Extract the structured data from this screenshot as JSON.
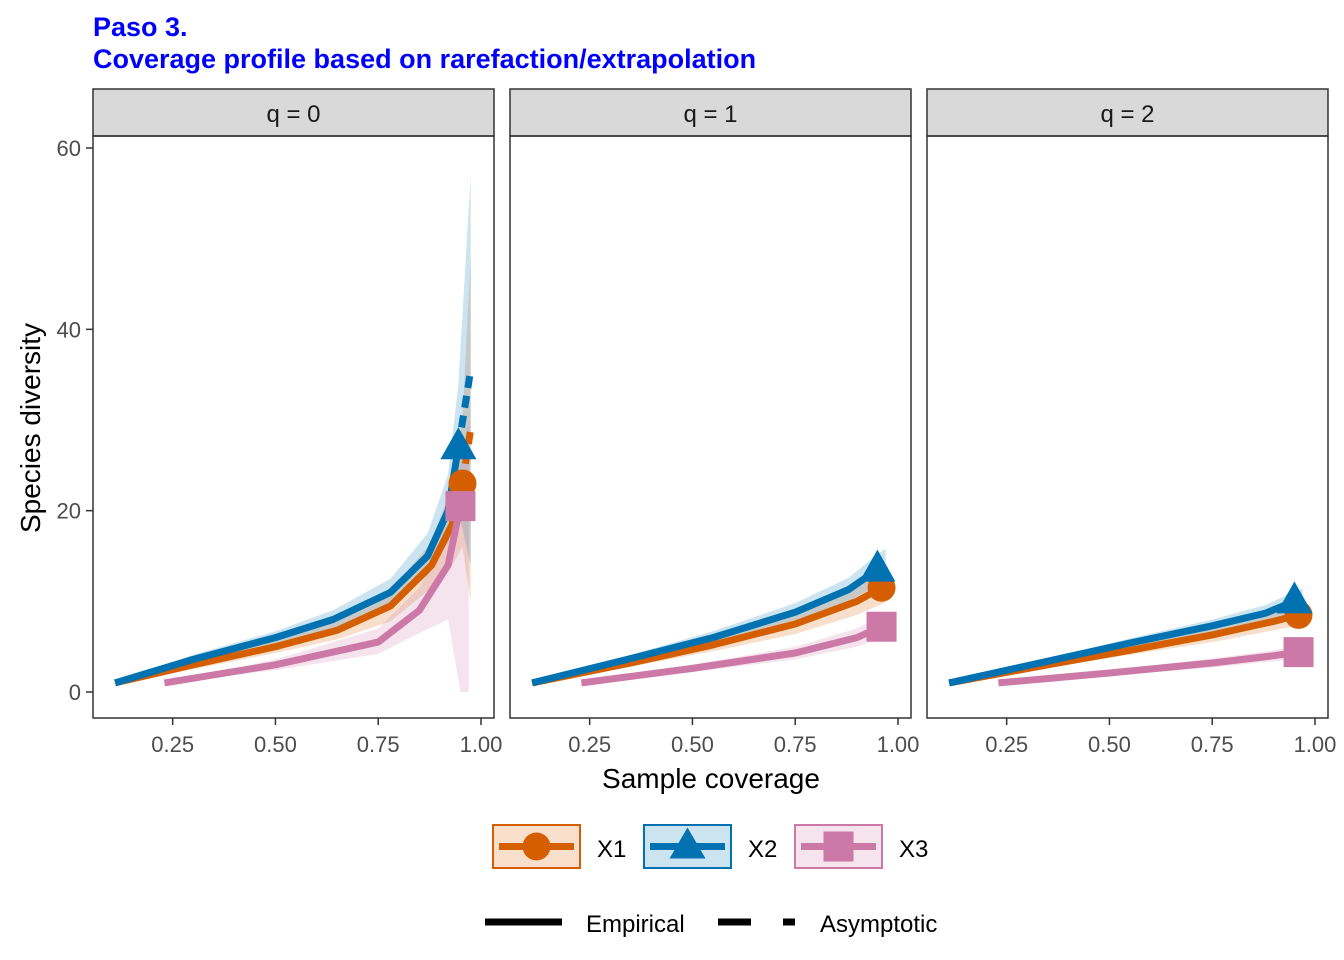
{
  "title_line1": "Paso 3.",
  "title_line2": "Coverage profile based on rarefaction/extrapolation",
  "chart_data": {
    "type": "line",
    "xlabel": "Sample coverage",
    "ylabel": "Species diversity",
    "xlim": [
      0.1,
      1.0
    ],
    "ylim": [
      -3,
      60
    ],
    "x_ticks": [
      0.25,
      0.5,
      0.75,
      1.0
    ],
    "x_tick_labels": [
      "0.25",
      "0.50",
      "0.75",
      "1.00"
    ],
    "y_ticks": [
      0,
      20,
      40,
      60
    ],
    "y_tick_labels": [
      "0",
      "20",
      "40",
      "60"
    ],
    "grid": false,
    "legend_position": "bottom",
    "colors": {
      "X1": "#D55E00",
      "X2": "#0072B2",
      "X3": "#CC79A7"
    },
    "markers": {
      "X1": "circle",
      "X2": "triangle",
      "X3": "square"
    },
    "legend": {
      "series": [
        {
          "name": "X1",
          "color": "#D55E00",
          "marker": "circle"
        },
        {
          "name": "X2",
          "color": "#0072B2",
          "marker": "triangle"
        },
        {
          "name": "X3",
          "color": "#CC79A7",
          "marker": "square"
        }
      ],
      "linetypes": [
        {
          "name": "Empirical",
          "style": "solid"
        },
        {
          "name": "Asymptotic",
          "style": "dashed"
        }
      ]
    },
    "panels": [
      {
        "label": "q = 0",
        "series": [
          {
            "name": "X1",
            "rarefaction": {
              "x": [
                0.11,
                0.3,
                0.5,
                0.65,
                0.78,
                0.88,
                0.93,
                0.955
              ],
              "y": [
                1,
                3,
                5,
                6.8,
                9.5,
                14,
                18.5,
                23
              ]
            },
            "extrapolation": {
              "x": [
                0.955,
                0.975
              ],
              "y": [
                23,
                29
              ]
            },
            "lower": [
              1,
              2.5,
              4.3,
              5.8,
              7.8,
              11.5,
              14,
              16
            ],
            "upper": [
              1,
              3.5,
              5.7,
              7.8,
              11.2,
              16.5,
              23,
              30
            ],
            "ext_lower": [
              16,
              10
            ],
            "ext_upper": [
              30,
              48
            ],
            "observed": {
              "x": 0.955,
              "y": 23
            }
          },
          {
            "name": "X2",
            "rarefaction": {
              "x": [
                0.11,
                0.3,
                0.5,
                0.64,
                0.78,
                0.87,
                0.92,
                0.945
              ],
              "y": [
                1,
                3.6,
                6,
                8,
                11,
                15,
                20,
                27
              ]
            },
            "extrapolation": {
              "x": [
                0.945,
                0.975
              ],
              "y": [
                27,
                35.5
              ]
            },
            "lower": [
              1,
              3.1,
              5.3,
              7,
              9.6,
              12.8,
              16.5,
              20
            ],
            "upper": [
              1,
              4.1,
              6.7,
              9,
              12.5,
              17.5,
              24,
              34
            ],
            "ext_lower": [
              20,
              14
            ],
            "ext_upper": [
              34,
              57
            ],
            "observed": {
              "x": 0.945,
              "y": 27
            }
          },
          {
            "name": "X3",
            "rarefaction": {
              "x": [
                0.23,
                0.5,
                0.75,
                0.85,
                0.92,
                0.95
              ],
              "y": [
                1,
                3,
                5.5,
                9,
                14,
                20.5
              ]
            },
            "extrapolation": {
              "x": [
                0.95,
                0.97
              ],
              "y": [
                20.5,
                24
              ]
            },
            "lower": [
              1,
              2.4,
              4.2,
              6.5,
              8,
              0
            ],
            "upper": [
              1,
              3.6,
              7,
              11.5,
              17,
              25
            ],
            "ext_lower": [
              0,
              0
            ],
            "ext_upper": [
              25,
              30
            ],
            "observed": {
              "x": 0.95,
              "y": 20.5
            }
          }
        ]
      },
      {
        "label": "q = 1",
        "series": [
          {
            "name": "X1",
            "rarefaction": {
              "x": [
                0.11,
                0.35,
                0.55,
                0.75,
                0.9,
                0.96
              ],
              "y": [
                1,
                3.2,
                5.2,
                7.5,
                10,
                11.5
              ]
            },
            "extrapolation": {
              "x": [
                0.96,
                0.97
              ],
              "y": [
                11.5,
                11.7
              ]
            },
            "lower": [
              1,
              2.8,
              4.5,
              6.4,
              8.5,
              9.7
            ],
            "upper": [
              1,
              3.6,
              5.9,
              8.6,
              11.5,
              13.3
            ],
            "ext_lower": [
              9.7,
              9.8
            ],
            "ext_upper": [
              13.3,
              13.6
            ],
            "observed": {
              "x": 0.96,
              "y": 11.5
            }
          },
          {
            "name": "X2",
            "rarefaction": {
              "x": [
                0.11,
                0.35,
                0.55,
                0.75,
                0.88,
                0.95
              ],
              "y": [
                1,
                3.7,
                6,
                8.8,
                11.3,
                13.5
              ]
            },
            "extrapolation": {
              "x": [
                0.95,
                0.97
              ],
              "y": [
                13.5,
                14
              ]
            },
            "lower": [
              1,
              3.3,
              5.3,
              7.8,
              10,
              11.8
            ],
            "upper": [
              1,
              4.1,
              6.7,
              9.8,
              12.6,
              15.2
            ],
            "ext_lower": [
              11.8,
              12.2
            ],
            "ext_upper": [
              15.2,
              15.8
            ],
            "observed": {
              "x": 0.95,
              "y": 13.5
            }
          },
          {
            "name": "X3",
            "rarefaction": {
              "x": [
                0.23,
                0.5,
                0.75,
                0.9,
                0.96
              ],
              "y": [
                1,
                2.6,
                4.3,
                6,
                7.2
              ]
            },
            "extrapolation": {
              "x": [
                0.96,
                0.97
              ],
              "y": [
                7.2,
                7.3
              ]
            },
            "lower": [
              1,
              2.2,
              3.6,
              5,
              6
            ],
            "upper": [
              1,
              3,
              5,
              7,
              8.4
            ],
            "ext_lower": [
              6,
              6.1
            ],
            "ext_upper": [
              8.4,
              8.5
            ],
            "observed": {
              "x": 0.96,
              "y": 7.2
            }
          }
        ]
      },
      {
        "label": "q = 2",
        "series": [
          {
            "name": "X1",
            "rarefaction": {
              "x": [
                0.11,
                0.35,
                0.55,
                0.75,
                0.9,
                0.96
              ],
              "y": [
                1,
                3,
                4.6,
                6.3,
                7.8,
                8.5
              ]
            },
            "extrapolation": {
              "x": [
                0.96,
                0.97
              ],
              "y": [
                8.5,
                8.6
              ]
            },
            "lower": [
              1,
              2.7,
              4.1,
              5.5,
              6.8,
              7.3
            ],
            "upper": [
              1,
              3.3,
              5.1,
              7.1,
              8.8,
              9.7
            ],
            "ext_lower": [
              7.3,
              7.4
            ],
            "ext_upper": [
              9.7,
              9.8
            ],
            "observed": {
              "x": 0.96,
              "y": 8.5
            }
          },
          {
            "name": "X2",
            "rarefaction": {
              "x": [
                0.11,
                0.35,
                0.55,
                0.75,
                0.88,
                0.95
              ],
              "y": [
                1,
                3.4,
                5.4,
                7.3,
                8.7,
                10
              ]
            },
            "extrapolation": {
              "x": [
                0.95,
                0.97
              ],
              "y": [
                10,
                10.2
              ]
            },
            "lower": [
              1,
              3.1,
              4.9,
              6.6,
              7.8,
              8.9
            ],
            "upper": [
              1,
              3.7,
              5.9,
              8,
              9.6,
              11.1
            ],
            "ext_lower": [
              8.9,
              9
            ],
            "ext_upper": [
              11.1,
              11.4
            ],
            "observed": {
              "x": 0.95,
              "y": 10
            }
          },
          {
            "name": "X3",
            "rarefaction": {
              "x": [
                0.23,
                0.5,
                0.75,
                0.9,
                0.96
              ],
              "y": [
                1,
                2.1,
                3.2,
                4,
                4.4
              ]
            },
            "extrapolation": {
              "x": [
                0.96,
                0.97
              ],
              "y": [
                4.4,
                4.45
              ]
            },
            "lower": [
              1,
              1.8,
              2.7,
              3.4,
              3.7
            ],
            "upper": [
              1,
              2.4,
              3.7,
              4.6,
              5.1
            ],
            "ext_lower": [
              3.7,
              3.75
            ],
            "ext_upper": [
              5.1,
              5.15
            ],
            "observed": {
              "x": 0.96,
              "y": 4.4
            }
          }
        ]
      }
    ]
  }
}
